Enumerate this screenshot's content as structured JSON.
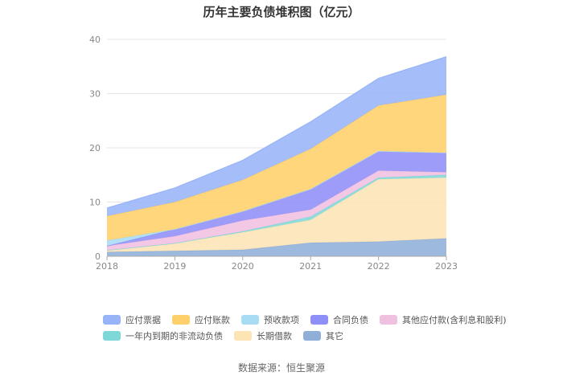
{
  "title": "历年主要负债堆积图（亿元）",
  "source": "数据来源：恒生聚源",
  "chart_data": {
    "type": "area",
    "stacked": true,
    "title": "历年主要负债堆积图（亿元）",
    "x": [
      "2018",
      "2019",
      "2020",
      "2021",
      "2022",
      "2023"
    ],
    "ylim": [
      0,
      40
    ],
    "yticks": [
      "0",
      "10",
      "20",
      "30",
      "40"
    ],
    "grid": true,
    "legend_position": "bottom",
    "series": [
      {
        "name": "其它",
        "color": "#8fafd9",
        "values": [
          0.8,
          1.0,
          1.2,
          2.5,
          2.7,
          3.3
        ]
      },
      {
        "name": "长期借款",
        "color": "#fde4b5",
        "values": [
          0.3,
          1.4,
          3.2,
          4.2,
          11.5,
          11.2
        ]
      },
      {
        "name": "一年内到期的非流动负债",
        "color": "#7fd8d8",
        "values": [
          0.0,
          0.0,
          0.2,
          0.6,
          0.3,
          0.5
        ]
      },
      {
        "name": "其他应付款(含利息和股利)",
        "color": "#f0c0e0",
        "values": [
          0.8,
          1.3,
          2.0,
          1.3,
          1.3,
          0.5
        ]
      },
      {
        "name": "合同负债",
        "color": "#8f8ff8",
        "values": [
          0.0,
          1.3,
          1.7,
          3.8,
          3.6,
          3.6
        ]
      },
      {
        "name": "预收款项",
        "color": "#a8dcf5",
        "values": [
          1.0,
          0.0,
          0.0,
          0.0,
          0.0,
          0.0
        ]
      },
      {
        "name": "应付账款",
        "color": "#ffd06a",
        "values": [
          4.5,
          5.0,
          5.8,
          7.4,
          8.4,
          10.7
        ]
      },
      {
        "name": "应付票据",
        "color": "#98b4f8",
        "values": [
          1.5,
          2.6,
          3.6,
          5.0,
          5.0,
          7.0
        ]
      }
    ]
  },
  "legend": {
    "row1": [
      {
        "name": "应付票据",
        "color": "#98b4f8"
      },
      {
        "name": "应付账款",
        "color": "#ffd06a"
      },
      {
        "name": "预收款项",
        "color": "#a8dcf5"
      },
      {
        "name": "合同负债",
        "color": "#8f8ff8"
      },
      {
        "name": "其他应付款(含利息和股利)",
        "color": "#f0c0e0"
      }
    ],
    "row2": [
      {
        "name": "一年内到期的非流动负债",
        "color": "#7fd8d8"
      },
      {
        "name": "长期借款",
        "color": "#fde4b5"
      },
      {
        "name": "其它",
        "color": "#8fafd9"
      }
    ]
  }
}
